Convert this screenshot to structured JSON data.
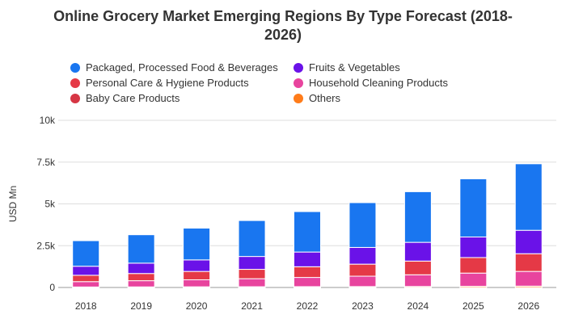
{
  "chart": {
    "title_line1": "Online Grocery Market Emerging Regions By Type Forecast (2018-",
    "title_line2": "2026)"
  },
  "colors": {
    "packaged": "#1976f0",
    "fruits": "#6a12e8",
    "personal_care": "#e53946",
    "household": "#e8449e",
    "baby_care": "#d63644",
    "others": "#ff7c1a",
    "grid": "#dddddd",
    "text": "#333333"
  },
  "chart_data": {
    "type": "bar",
    "stacked": true,
    "title": "Online Grocery Market Emerging Regions By Type Forecast (2018-2026)",
    "xlabel": "",
    "ylabel": "USD Mn",
    "ylim": [
      0,
      10000
    ],
    "yticks": [
      0,
      2500,
      5000,
      7500,
      10000
    ],
    "ytick_labels": [
      "0",
      "2.5k",
      "5k",
      "7.5k",
      "10k"
    ],
    "grid": true,
    "legend_position": "top",
    "categories": [
      "2018",
      "2019",
      "2020",
      "2021",
      "2022",
      "2023",
      "2024",
      "2025",
      "2026"
    ],
    "series": [
      {
        "name": "Others",
        "color_key": "others",
        "values": [
          30,
          35,
          40,
          45,
          50,
          55,
          60,
          70,
          80
        ]
      },
      {
        "name": "Household Cleaning Products",
        "color_key": "household",
        "values": [
          320,
          370,
          420,
          480,
          550,
          620,
          700,
          790,
          880
        ]
      },
      {
        "name": "Personal Care & Hygiene Products",
        "color_key": "personal_care",
        "values": [
          380,
          430,
          500,
          560,
          640,
          720,
          820,
          930,
          1060
        ]
      },
      {
        "name": "Baby Care Products",
        "color_key": "baby_care",
        "values": [
          0,
          0,
          0,
          0,
          0,
          0,
          0,
          0,
          0
        ]
      },
      {
        "name": "Fruits & Vegetables",
        "color_key": "fruits",
        "values": [
          540,
          620,
          690,
          770,
          880,
          1000,
          1120,
          1230,
          1400
        ]
      },
      {
        "name": "Packaged, Processed Food & Beverages",
        "color_key": "packaged",
        "values": [
          1530,
          1700,
          1900,
          2150,
          2420,
          2680,
          3030,
          3480,
          3980
        ]
      }
    ]
  },
  "legend": [
    {
      "label": "Packaged, Processed Food & Beverages",
      "color_key": "packaged"
    },
    {
      "label": "Fruits & Vegetables",
      "color_key": "fruits"
    },
    {
      "label": "Personal Care & Hygiene Products",
      "color_key": "personal_care"
    },
    {
      "label": "Household Cleaning Products",
      "color_key": "household"
    },
    {
      "label": "Baby Care Products",
      "color_key": "baby_care"
    },
    {
      "label": "Others",
      "color_key": "others"
    }
  ]
}
